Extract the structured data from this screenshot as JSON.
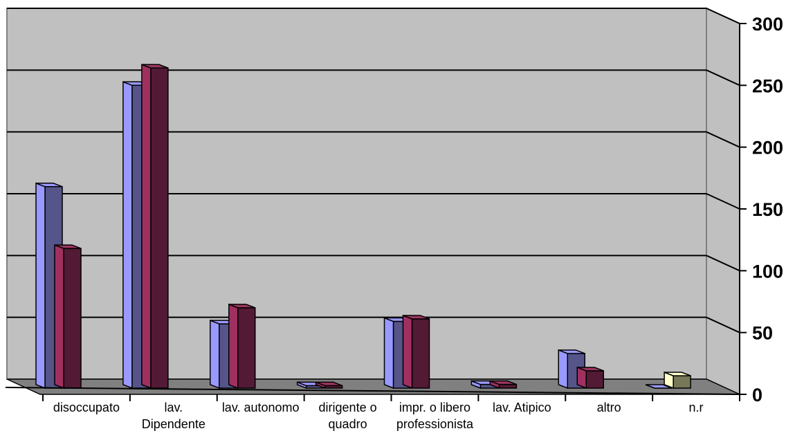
{
  "chart_data": {
    "type": "bar",
    "title": "",
    "xlabel": "",
    "ylabel": "",
    "categories": [
      [
        "disoccupato"
      ],
      [
        "lav.",
        "Dipendente"
      ],
      [
        "lav. autonomo"
      ],
      [
        "dirigente o",
        "quadro"
      ],
      [
        "impr. o libero",
        "professionista"
      ],
      [
        "lav. Atipico"
      ],
      [
        "altro"
      ],
      [
        "n.r"
      ]
    ],
    "series": [
      {
        "values": [
          163,
          245,
          52,
          2,
          54,
          3,
          28,
          0
        ],
        "colors": {
          "front": "#55558a",
          "side": "#9999ff",
          "top": "#9999ff"
        }
      },
      {
        "values": [
          113,
          259,
          65,
          2,
          56,
          3,
          14,
          10
        ],
        "colors": {
          "front": "#521a35",
          "side": "#a03060",
          "top": "#9c355e"
        },
        "overrides": {
          "7": {
            "front": "#77775a",
            "side": "#ffffcc",
            "top": "#ffffcc"
          }
        }
      }
    ],
    "ylim": [
      0,
      300
    ],
    "yticks": [
      0,
      50,
      100,
      150,
      200,
      250,
      300
    ],
    "grid": true,
    "legend": "none",
    "colors": {
      "wall": "#c0c0c0",
      "floor": "#808080",
      "gridline": "#000000",
      "axis": "#808080"
    }
  }
}
